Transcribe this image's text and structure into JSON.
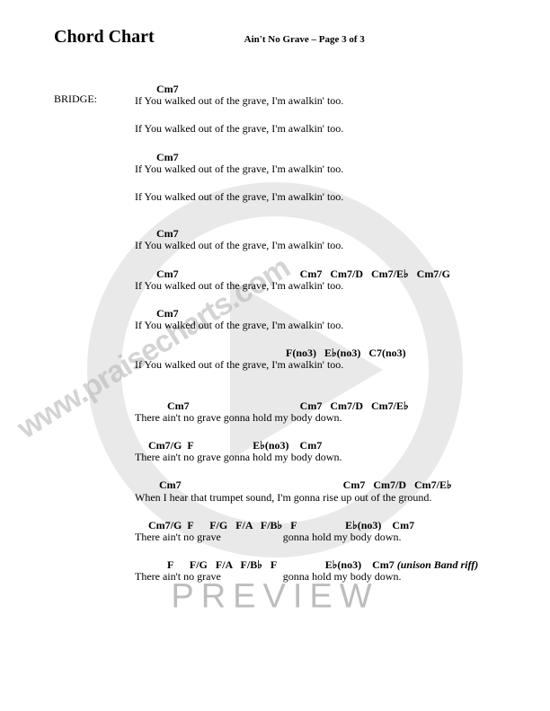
{
  "header": {
    "doc_title": "Chord Chart",
    "page_info": "Ain't No Grave – Page 3 of 3"
  },
  "section_label": "BRIDGE:",
  "watermark": {
    "url_text": "www.praisecharts.com",
    "preview_text": "PREVIEW",
    "circle_fill": "#8a8a8a",
    "triangle_fill": "#ffffff"
  },
  "colors": {
    "text": "#000000",
    "background": "#ffffff",
    "watermark_gray": "#bdbdbd"
  },
  "lines": [
    {
      "chord": "        Cm7",
      "lyric": "If You walked out of the grave, I'm awalkin' too."
    },
    {
      "chord": "",
      "lyric": "If You walked out of the grave, I'm awalkin' too."
    },
    {
      "chord": "        Cm7",
      "lyric": "If You walked out of the grave, I'm awalkin' too."
    },
    {
      "chord": "",
      "lyric": "If You walked out of the grave, I'm awalkin' too."
    },
    {
      "chord": "        Cm7",
      "lyric": "If You walked out of the grave, I'm awalkin' too."
    },
    {
      "chord": "        Cm7                                             Cm7   Cm7/D   Cm7/E♭   Cm7/G",
      "lyric": "If You walked out of the grave, I'm awalkin' too."
    },
    {
      "chord": "        Cm7",
      "lyric": "If You walked out of the grave, I'm awalkin' too."
    },
    {
      "chord": "                                                        F(no3)   E♭(no3)   C7(no3)",
      "lyric": "If You walked out of the grave, I'm awalkin' too."
    },
    {
      "chord": "            Cm7                                         Cm7   Cm7/D   Cm7/E♭",
      "lyric": "There ain't no grave gonna hold my body down."
    },
    {
      "chord": "     Cm7/G  F                      E♭(no3)    Cm7",
      "lyric": "There ain't no grave gonna hold my body down."
    },
    {
      "chord": "         Cm7                                                            Cm7   Cm7/D   Cm7/E♭",
      "lyric": "When I hear that trumpet sound, I'm gonna rise up out of the ground."
    },
    {
      "chord": "     Cm7/G  F      F/G   F/A   F/B♭   F                  E♭(no3)    Cm7",
      "lyric": "There ain't no grave                       gonna hold my body down."
    },
    {
      "chord_html": "            F      F/G   F/A   F/B♭   F                  E♭(no3)    Cm7 <span class=\"italic\">(unison Band riff)</span>",
      "lyric": "There ain't no grave                       gonna hold my body down."
    }
  ]
}
